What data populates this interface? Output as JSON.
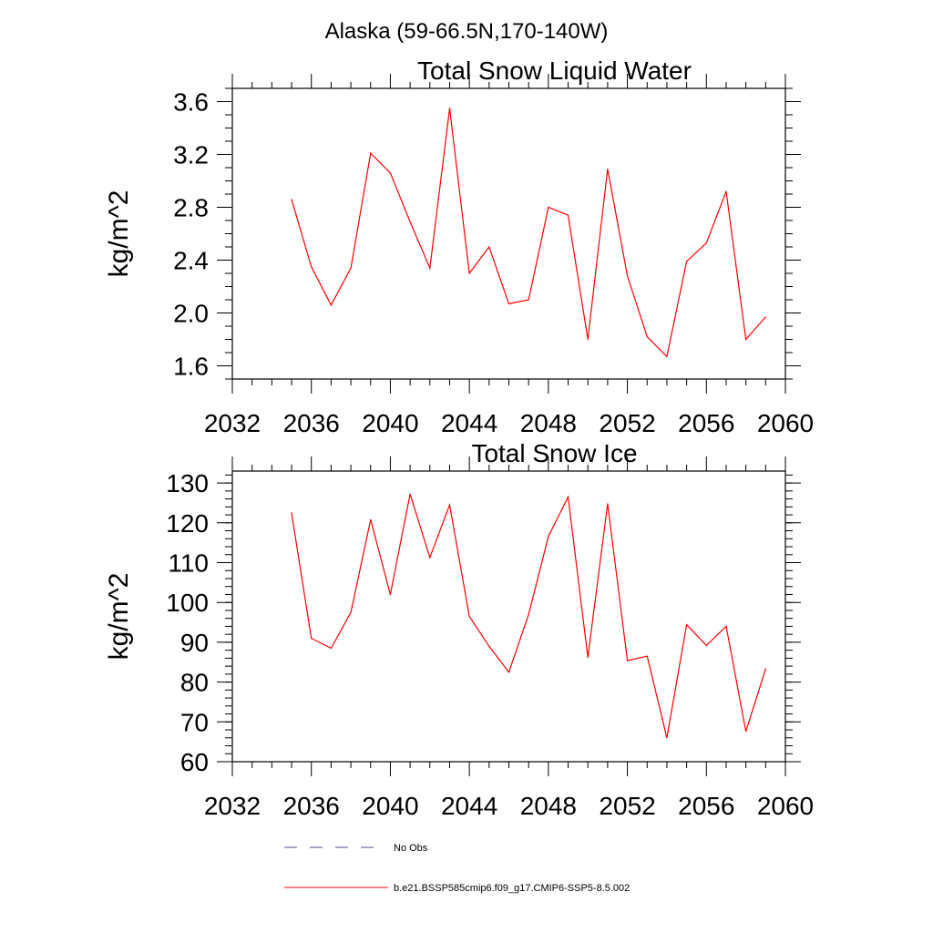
{
  "figure": {
    "suptitle": "Alaska (59-66.5N,170-140W)"
  },
  "legend": {
    "entries": [
      {
        "label": "No Obs",
        "style": "dashed",
        "color": "#4d4d8c"
      },
      {
        "label": "b.e21.BSSP585cmip6.f09_g17.CMIP6-SSP5-8.5.002",
        "style": "solid",
        "color": "#ff0000"
      }
    ],
    "placement": "bottom-center"
  },
  "chart_data": [
    {
      "type": "line",
      "title": "Total Snow Liquid Water",
      "xlabel": "",
      "ylabel": "kg/m^2",
      "xlim": [
        2032,
        2060
      ],
      "ylim": [
        1.5,
        3.7
      ],
      "xticks": [
        "2032",
        "2036",
        "2040",
        "2044",
        "2048",
        "2052",
        "2056",
        "2060"
      ],
      "yticks": [
        "1.6",
        "2.0",
        "2.4",
        "2.8",
        "3.2",
        "3.6"
      ],
      "series": [
        {
          "color": "#ff0000",
          "x": [
            2035,
            2036,
            2037,
            2038,
            2039,
            2040,
            2041,
            2042,
            2043,
            2044,
            2045,
            2046,
            2047,
            2048,
            2049,
            2050,
            2051,
            2052,
            2053,
            2054,
            2055,
            2056,
            2057,
            2058,
            2059
          ],
          "y": [
            2.86,
            2.35,
            2.06,
            2.34,
            3.21,
            3.06,
            2.69,
            2.34,
            3.55,
            2.3,
            2.5,
            2.07,
            2.1,
            2.8,
            2.74,
            1.8,
            3.09,
            2.28,
            1.82,
            1.67,
            2.39,
            2.53,
            2.92,
            1.8,
            1.97
          ]
        }
      ]
    },
    {
      "type": "line",
      "title": "Total Snow Ice",
      "xlabel": "",
      "ylabel": "kg/m^2",
      "xlim": [
        2032,
        2060
      ],
      "ylim": [
        60,
        133
      ],
      "xticks": [
        "2032",
        "2036",
        "2040",
        "2044",
        "2048",
        "2052",
        "2056",
        "2060"
      ],
      "yticks": [
        "60",
        "70",
        "80",
        "90",
        "100",
        "110",
        "120",
        "130"
      ],
      "series": [
        {
          "color": "#ff0000",
          "x": [
            2035,
            2036,
            2037,
            2038,
            2039,
            2040,
            2041,
            2042,
            2043,
            2044,
            2045,
            2046,
            2047,
            2048,
            2049,
            2050,
            2051,
            2052,
            2053,
            2054,
            2055,
            2056,
            2057,
            2058,
            2059
          ],
          "y": [
            122.5,
            91.0,
            88.5,
            97.5,
            120.8,
            102.0,
            127.2,
            111.3,
            124.5,
            96.5,
            89.0,
            82.5,
            97.0,
            116.6,
            126.5,
            86.2,
            124.8,
            85.4,
            86.5,
            66.0,
            94.4,
            89.2,
            94.0,
            67.6,
            83.3
          ]
        }
      ]
    }
  ]
}
